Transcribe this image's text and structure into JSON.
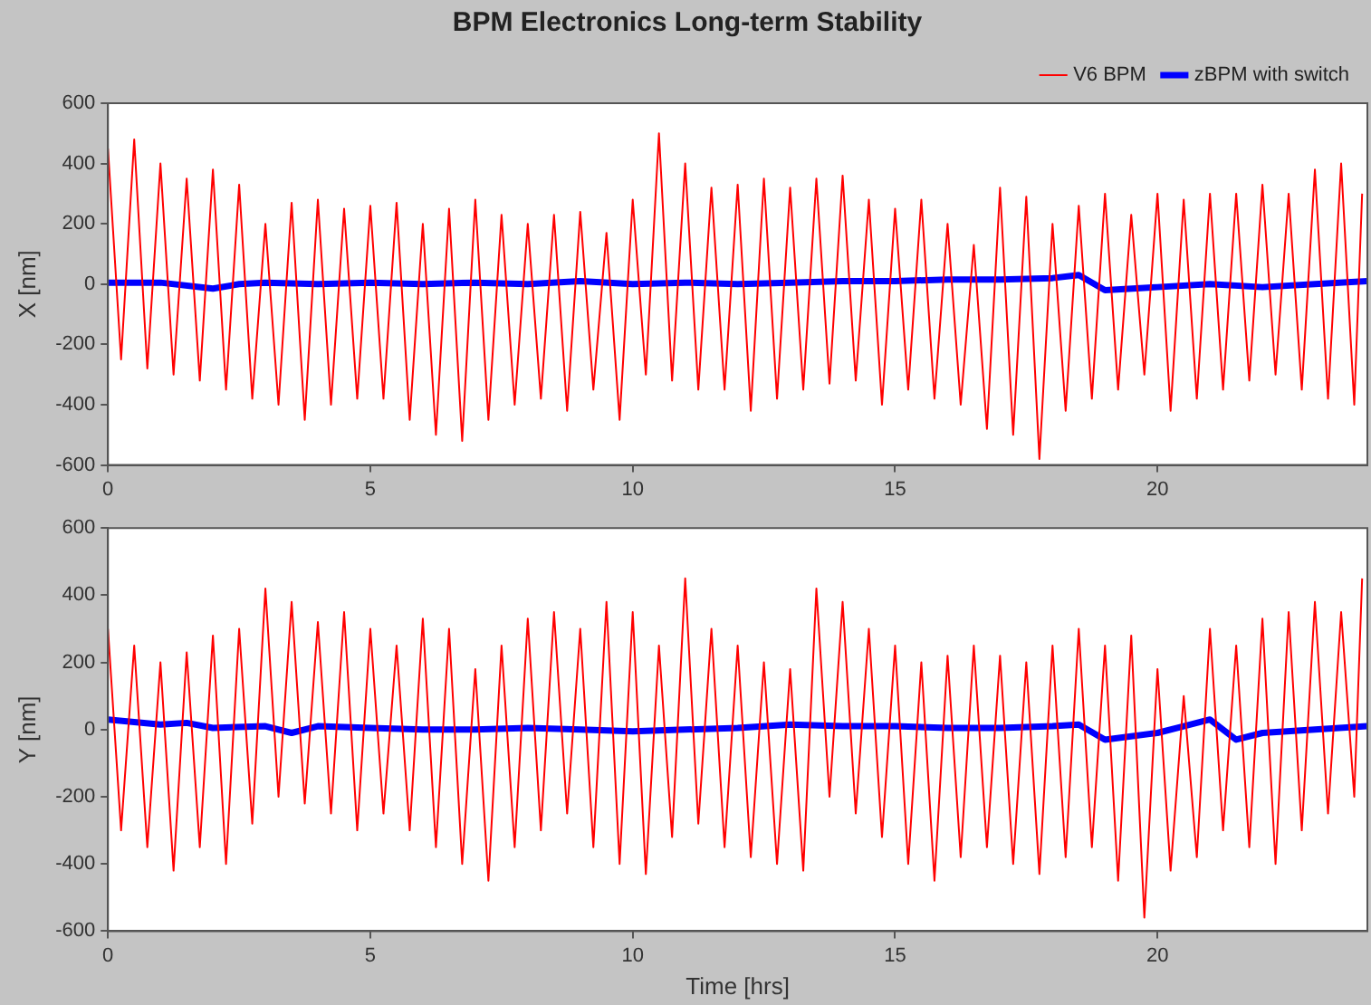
{
  "chart_data": [
    {
      "type": "line",
      "title": "BPM Electronics Long-term Stability",
      "ylabel": "X [nm]",
      "xlim": [
        0,
        24
      ],
      "xticks": [
        0,
        5,
        10,
        15,
        20
      ],
      "ylim": [
        -600,
        600
      ],
      "yticks": [
        -600,
        -400,
        -200,
        0,
        200,
        400,
        600
      ],
      "grid": false,
      "legend": "top right",
      "marker": "none",
      "line_style": "solid",
      "series": [
        {
          "name": "V6 BPM",
          "color": "#ff0000",
          "x": [
            0,
            0.25,
            0.5,
            0.75,
            1,
            1.25,
            1.5,
            1.75,
            2,
            2.25,
            2.5,
            2.75,
            3,
            3.25,
            3.5,
            3.75,
            4,
            4.25,
            4.5,
            4.75,
            5,
            5.25,
            5.5,
            5.75,
            6,
            6.25,
            6.5,
            6.75,
            7,
            7.25,
            7.5,
            7.75,
            8,
            8.25,
            8.5,
            8.75,
            9,
            9.25,
            9.5,
            9.75,
            10,
            10.25,
            10.5,
            10.75,
            11,
            11.25,
            11.5,
            11.75,
            12,
            12.25,
            12.5,
            12.75,
            13,
            13.25,
            13.5,
            13.75,
            14,
            14.25,
            14.5,
            14.75,
            15,
            15.25,
            15.5,
            15.75,
            16,
            16.25,
            16.5,
            16.75,
            17,
            17.25,
            17.5,
            17.75,
            18,
            18.25,
            18.5,
            18.75,
            19,
            19.25,
            19.5,
            19.75,
            20,
            20.25,
            20.5,
            20.75,
            21,
            21.25,
            21.5,
            21.75,
            22,
            22.25,
            22.5,
            22.75,
            23,
            23.25,
            23.5,
            23.75,
            23.9
          ],
          "values": [
            450,
            -250,
            480,
            -280,
            400,
            -300,
            350,
            -320,
            380,
            -350,
            330,
            -380,
            200,
            -400,
            270,
            -450,
            280,
            -400,
            250,
            -380,
            260,
            -380,
            270,
            -450,
            200,
            -500,
            250,
            -520,
            280,
            -450,
            230,
            -400,
            200,
            -380,
            230,
            -420,
            240,
            -350,
            170,
            -450,
            280,
            -300,
            500,
            -320,
            400,
            -350,
            320,
            -350,
            330,
            -420,
            350,
            -380,
            320,
            -350,
            350,
            -330,
            360,
            -320,
            280,
            -400,
            250,
            -350,
            280,
            -380,
            200,
            -400,
            130,
            -480,
            320,
            -500,
            290,
            -580,
            200,
            -420,
            260,
            -380,
            300,
            -350,
            230,
            -300,
            300,
            -420,
            280,
            -380,
            300,
            -350,
            300,
            -320,
            330,
            -300,
            300,
            -350,
            380,
            -380,
            400,
            -400,
            300
          ]
        },
        {
          "name": "zBPM with switch",
          "color": "#0000ff",
          "x": [
            0,
            1,
            2,
            2.5,
            3,
            4,
            5,
            6,
            7,
            8,
            9,
            10,
            11,
            12,
            13,
            14,
            15,
            16,
            17,
            18,
            18.5,
            19,
            20,
            21,
            22,
            23,
            24
          ],
          "values": [
            5,
            5,
            -15,
            0,
            5,
            0,
            5,
            0,
            5,
            0,
            10,
            0,
            5,
            0,
            5,
            10,
            10,
            15,
            15,
            20,
            30,
            -20,
            -10,
            0,
            -10,
            0,
            10
          ]
        }
      ]
    },
    {
      "type": "line",
      "xlabel": "Time [hrs]",
      "ylabel": "Y [nm]",
      "xlim": [
        0,
        24
      ],
      "xticks": [
        0,
        5,
        10,
        15,
        20
      ],
      "ylim": [
        -600,
        600
      ],
      "yticks": [
        -600,
        -400,
        -200,
        0,
        200,
        400,
        600
      ],
      "grid": false,
      "marker": "none",
      "line_style": "solid",
      "series": [
        {
          "color": "#ff0000",
          "x": [
            0,
            0.25,
            0.5,
            0.75,
            1,
            1.25,
            1.5,
            1.75,
            2,
            2.25,
            2.5,
            2.75,
            3,
            3.25,
            3.5,
            3.75,
            4,
            4.25,
            4.5,
            4.75,
            5,
            5.25,
            5.5,
            5.75,
            6,
            6.25,
            6.5,
            6.75,
            7,
            7.25,
            7.5,
            7.75,
            8,
            8.25,
            8.5,
            8.75,
            9,
            9.25,
            9.5,
            9.75,
            10,
            10.25,
            10.5,
            10.75,
            11,
            11.25,
            11.5,
            11.75,
            12,
            12.25,
            12.5,
            12.75,
            13,
            13.25,
            13.5,
            13.75,
            14,
            14.25,
            14.5,
            14.75,
            15,
            15.25,
            15.5,
            15.75,
            16,
            16.25,
            16.5,
            16.75,
            17,
            17.25,
            17.5,
            17.75,
            18,
            18.25,
            18.5,
            18.75,
            19,
            19.25,
            19.5,
            19.75,
            20,
            20.25,
            20.5,
            20.75,
            21,
            21.25,
            21.5,
            21.75,
            22,
            22.25,
            22.5,
            22.75,
            23,
            23.25,
            23.5,
            23.75,
            23.9
          ],
          "values": [
            300,
            -300,
            250,
            -350,
            200,
            -420,
            230,
            -350,
            280,
            -400,
            300,
            -280,
            420,
            -200,
            380,
            -220,
            320,
            -250,
            350,
            -300,
            300,
            -250,
            250,
            -300,
            330,
            -350,
            300,
            -400,
            180,
            -450,
            250,
            -350,
            330,
            -300,
            350,
            -250,
            300,
            -350,
            380,
            -400,
            350,
            -430,
            250,
            -320,
            450,
            -280,
            300,
            -350,
            250,
            -380,
            200,
            -400,
            180,
            -420,
            420,
            -200,
            380,
            -250,
            300,
            -320,
            250,
            -400,
            200,
            -450,
            220,
            -380,
            250,
            -350,
            220,
            -400,
            200,
            -430,
            250,
            -380,
            300,
            -350,
            250,
            -450,
            280,
            -560,
            180,
            -420,
            100,
            -380,
            300,
            -300,
            250,
            -350,
            330,
            -400,
            350,
            -300,
            380,
            -250,
            350,
            -200,
            450
          ]
        },
        {
          "color": "#0000ff",
          "x": [
            0,
            1,
            1.5,
            2,
            3,
            3.5,
            4,
            5,
            6,
            7,
            8,
            9,
            10,
            11,
            12,
            13,
            14,
            15,
            16,
            17,
            18,
            18.5,
            19,
            20,
            20.5,
            21,
            21.5,
            22,
            23,
            24
          ],
          "values": [
            30,
            15,
            20,
            5,
            10,
            -10,
            10,
            5,
            0,
            0,
            5,
            0,
            -5,
            0,
            5,
            15,
            10,
            10,
            5,
            5,
            10,
            15,
            -30,
            -10,
            10,
            30,
            -30,
            -10,
            0,
            10
          ]
        }
      ]
    }
  ]
}
